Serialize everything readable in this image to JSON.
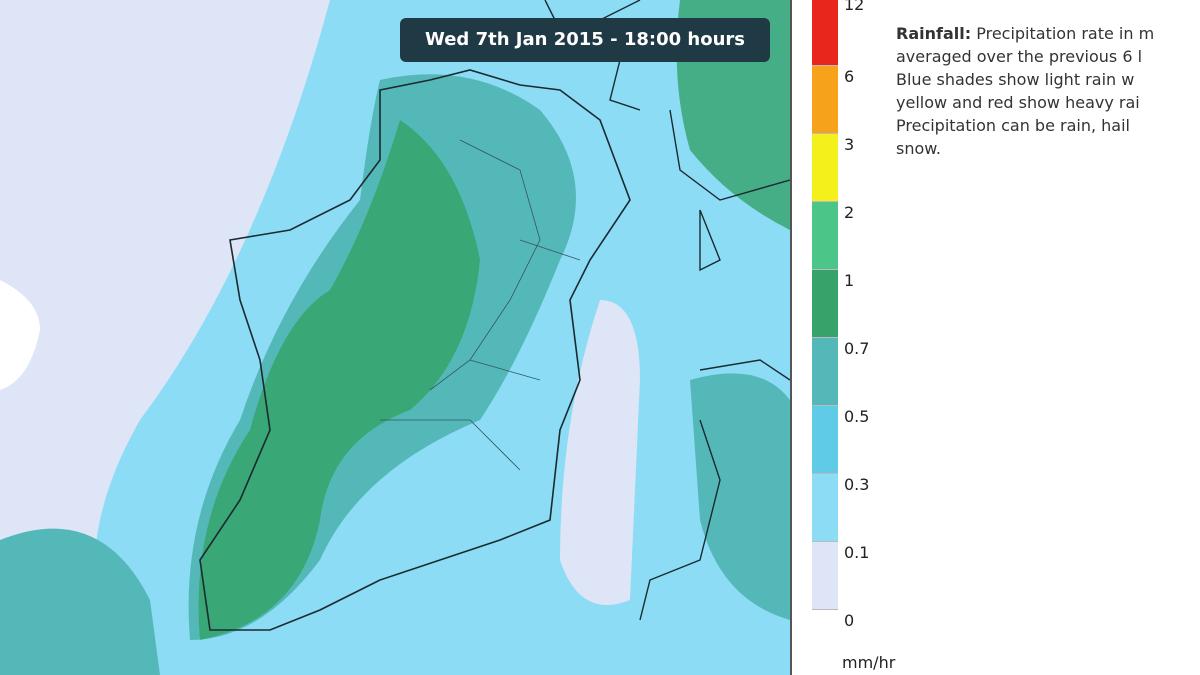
{
  "timestamp": "Wed 7th Jan 2015 - 18:00 hours",
  "legend": {
    "unit": "mm/hr",
    "entries": [
      {
        "label": "12",
        "color": "#e8261c"
      },
      {
        "label": "6",
        "color": "#f7a21b"
      },
      {
        "label": "3",
        "color": "#f4f01c"
      },
      {
        "label": "2",
        "color": "#4cc589"
      },
      {
        "label": "1",
        "color": "#35a36a"
      },
      {
        "label": "0.7",
        "color": "#55b8b8"
      },
      {
        "label": "0.5",
        "color": "#5fcbe6"
      },
      {
        "label": "0.3",
        "color": "#8cdcf5"
      },
      {
        "label": "0.1",
        "color": "#dde5f7"
      },
      {
        "label": "0",
        "color": "#ffffff"
      }
    ]
  },
  "description": {
    "heading": "Rainfall:",
    "lines": [
      "Precipitation rate in m",
      "averaged over the previous 6 l",
      "Blue shades show light rain w",
      "yellow and red show heavy rai",
      "Precipitation can be rain, hail",
      "snow."
    ]
  }
}
